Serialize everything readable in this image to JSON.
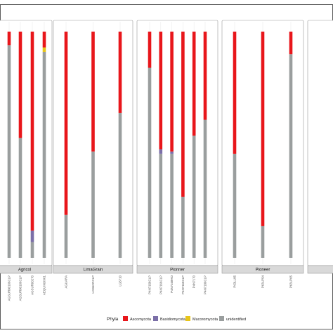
{
  "chart_data": {
    "type": "bar",
    "stacked": true,
    "orientation": "vertical",
    "ylim": [
      0,
      1
    ],
    "legend": {
      "title": "Phyla",
      "position": "bottom"
    },
    "series": [
      {
        "name": "Ascomycota",
        "color": "#e8161b"
      },
      {
        "name": "Basidiomycota",
        "color": "#7b6fa8"
      },
      {
        "name": "Mucoromycota",
        "color": "#e8c51a"
      },
      {
        "name": "unidentified",
        "color": "#9a9e9e"
      }
    ],
    "panels": [
      {
        "name": "Agricol",
        "categories": [
          "AGSUR00106CLP",
          "AGSUR00106CLP",
          "AGSUR00270",
          "AEQUINOX01"
        ],
        "values": {
          "unidentified": [
            0.94,
            0.53,
            0.07,
            0.91
          ],
          "Basidiomycota": [
            0.0,
            0.0,
            0.05,
            0.0
          ],
          "Mucoromycota": [
            0.0,
            0.0,
            0.0,
            0.02
          ],
          "Ascomycota": [
            0.06,
            0.47,
            0.88,
            0.07
          ]
        }
      },
      {
        "name": "LimaGrain",
        "categories": [
          "AGUARA",
          "LG96CRCLP",
          "LG5710"
        ],
        "values": {
          "unidentified": [
            0.19,
            0.47,
            0.64
          ],
          "Basidiomycota": [
            0.0,
            0.0,
            0.0
          ],
          "Mucoromycota": [
            0.0,
            0.0,
            0.0
          ],
          "Ascomycota": [
            0.81,
            0.53,
            0.36
          ]
        }
      },
      {
        "name": "Pionner",
        "categories": [
          "P4N7158CLP",
          "P4N7166CLP",
          "P4N7168HO",
          "P4N7160CLP",
          "P4N7170",
          "P4N7180CLP"
        ],
        "values": {
          "unidentified": [
            0.84,
            0.46,
            0.46,
            0.27,
            0.54,
            0.61
          ],
          "Basidiomycota": [
            0.0,
            0.02,
            0.01,
            0.0,
            0.0,
            0.0
          ],
          "Mucoromycota": [
            0.0,
            0.0,
            0.0,
            0.0,
            0.0,
            0.0
          ],
          "Ascomycota": [
            0.16,
            0.52,
            0.53,
            0.73,
            0.46,
            0.39
          ]
        }
      },
      {
        "name": "Pioneer",
        "categories": [
          "P63LL85",
          "P63LP54",
          "P63LP65"
        ],
        "values": {
          "unidentified": [
            0.46,
            0.14,
            0.9
          ],
          "Basidiomycota": [
            0.0,
            0.0,
            0.0
          ],
          "Mucoromycota": [
            0.0,
            0.0,
            0.0
          ],
          "Ascomycota": [
            0.54,
            0.86,
            0.1
          ]
        }
      },
      {
        "name": "",
        "categories": [],
        "values": {}
      }
    ]
  }
}
